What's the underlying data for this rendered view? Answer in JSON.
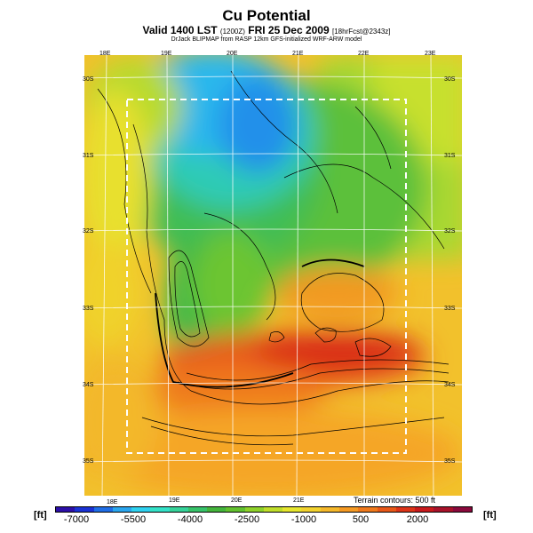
{
  "title": "Cu Potential",
  "subtitle_main": "Valid 1400 LST",
  "subtitle_code": "(1200Z)",
  "subtitle_date": "FRI 25 Dec 2009",
  "subtitle_forecast": "[18hrFcst@2343z]",
  "credit": "DrJack BLIPMAP from RASP 12km GFS-initialized WRF-ARW model",
  "lon_labels_top": [
    "18E",
    "19E",
    "20E",
    "21E",
    "22E",
    "23E"
  ],
  "lon_labels_bottom": [
    "18E",
    "19E",
    "20E",
    "21E"
  ],
  "lat_labels_left": [
    "30S",
    "31S",
    "32S",
    "33S",
    "34S",
    "35S"
  ],
  "lat_labels_right": [
    "30S",
    "31S",
    "32S",
    "33S",
    "34S",
    "35S"
  ],
  "contour_note": "Terrain contours: 500 ft",
  "unit_left": "[ft]",
  "unit_right": "[ft]",
  "scale_values": [
    "-7000",
    "-5500",
    "-4000",
    "-2500",
    "-1000",
    "500",
    "2000"
  ],
  "scale_colors": [
    "#2c0fa8",
    "#1a32d4",
    "#1f6ee6",
    "#2aa6ee",
    "#2fd2f0",
    "#34e2c8",
    "#36d39a",
    "#37c36a",
    "#44b53c",
    "#62c12f",
    "#8fd22a",
    "#c0de2a",
    "#e6e62e",
    "#f2d22e",
    "#f5b82a",
    "#f59a23",
    "#f07a1c",
    "#e85818",
    "#dc3418",
    "#c81a1c",
    "#a8122a",
    "#8a0a3c"
  ]
}
